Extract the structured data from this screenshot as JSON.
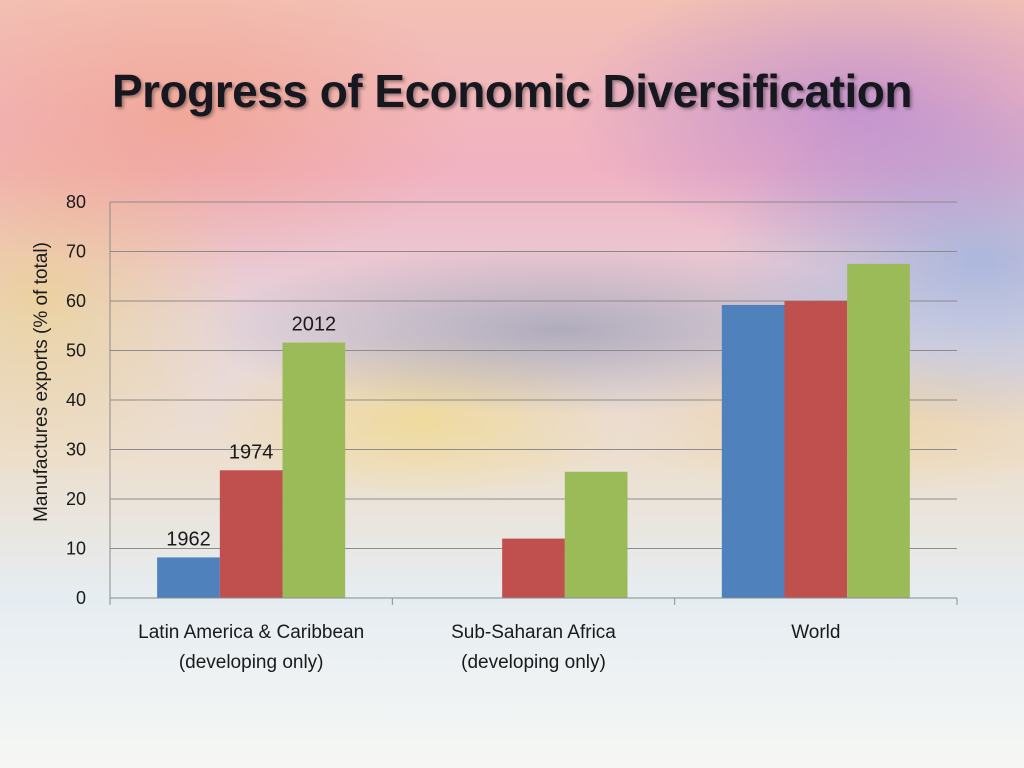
{
  "slide": {
    "title": "Progress of Economic Diversification"
  },
  "chart_data": {
    "type": "bar",
    "ylabel": "Manufactures exports (% of total)",
    "xlabel": "",
    "ylim": [
      0,
      80
    ],
    "yticks": [
      0,
      10,
      20,
      30,
      40,
      50,
      60,
      70,
      80
    ],
    "grid": true,
    "categories": [
      [
        "Latin America & Caribbean",
        "(developing only)"
      ],
      [
        "Sub-Saharan Africa",
        "(developing only)"
      ],
      [
        "World"
      ]
    ],
    "series": [
      {
        "name": "1962",
        "color": "#4f81bd",
        "values": [
          8.2,
          null,
          59.2
        ]
      },
      {
        "name": "1974",
        "color": "#c0504d",
        "values": [
          25.8,
          12.0,
          60.0
        ]
      },
      {
        "name": "2012",
        "color": "#9bbb59",
        "values": [
          51.6,
          25.5,
          67.5
        ]
      }
    ],
    "series_labels_on_category": 0
  }
}
